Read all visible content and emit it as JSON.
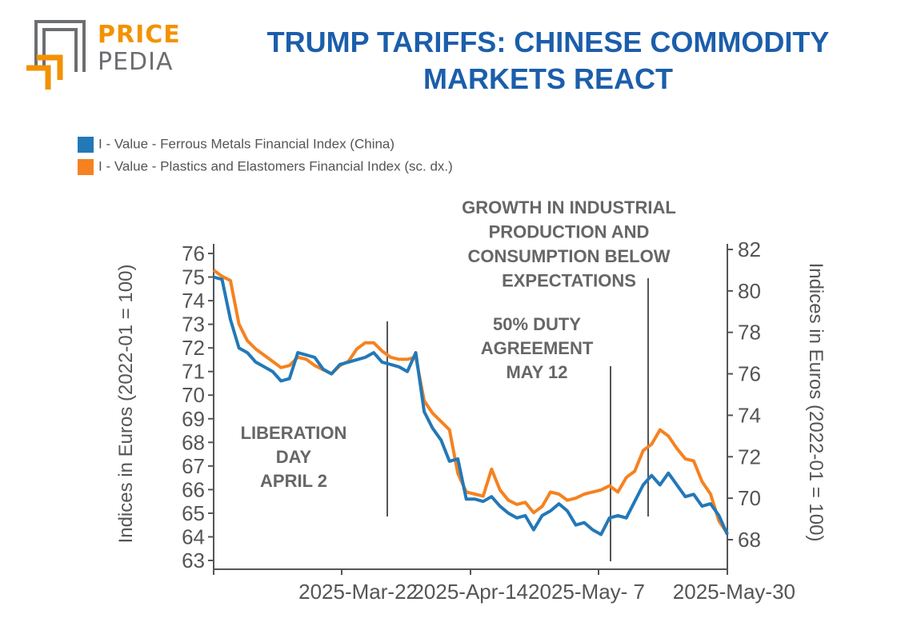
{
  "logo": {
    "line1": "PRICE",
    "line2": "PEDIA",
    "orange": "#f39200",
    "gray": "#6d6e71"
  },
  "title": {
    "line1": "TRUMP TARIFFS: CHINESE COMMODITY",
    "line2": "MARKETS REACT",
    "color": "#1b5eab"
  },
  "chart_data": {
    "type": "line",
    "x": [
      "2025-Mar-03",
      "2025-Mar-04",
      "2025-Mar-05",
      "2025-Mar-06",
      "2025-Mar-07",
      "2025-Mar-10",
      "2025-Mar-11",
      "2025-Mar-12",
      "2025-Mar-13",
      "2025-Mar-14",
      "2025-Mar-17",
      "2025-Mar-18",
      "2025-Mar-19",
      "2025-Mar-20",
      "2025-Mar-21",
      "2025-Mar-22",
      "2025-Mar-24",
      "2025-Mar-25",
      "2025-Mar-26",
      "2025-Mar-27",
      "2025-Mar-28",
      "2025-Mar-31",
      "2025-Apr-01",
      "2025-Apr-02",
      "2025-Apr-03",
      "2025-Apr-07",
      "2025-Apr-08",
      "2025-Apr-09",
      "2025-Apr-10",
      "2025-Apr-11",
      "2025-Apr-14",
      "2025-Apr-15",
      "2025-Apr-16",
      "2025-Apr-17",
      "2025-Apr-18",
      "2025-Apr-21",
      "2025-Apr-22",
      "2025-Apr-23",
      "2025-Apr-24",
      "2025-Apr-25",
      "2025-Apr-28",
      "2025-Apr-29",
      "2025-Apr-30",
      "2025-May-06",
      "2025-May-07",
      "2025-May-08",
      "2025-May-09",
      "2025-May-12",
      "2025-May-13",
      "2025-May-14",
      "2025-May-15",
      "2025-May-16",
      "2025-May-19",
      "2025-May-20",
      "2025-May-21",
      "2025-May-22",
      "2025-May-23",
      "2025-May-26",
      "2025-May-27",
      "2025-May-28",
      "2025-May-29",
      "2025-May-30"
    ],
    "series": [
      {
        "name": "I - Value - Ferrous Metals Financial Index (China)",
        "axis": "left",
        "color": "#2378b8",
        "values": [
          75.0,
          74.9,
          73.2,
          72.0,
          71.8,
          71.4,
          71.2,
          71.0,
          70.6,
          70.7,
          71.8,
          71.7,
          71.6,
          71.1,
          70.9,
          71.3,
          71.4,
          71.5,
          71.6,
          71.8,
          71.4,
          71.3,
          71.2,
          71.0,
          71.8,
          69.3,
          68.6,
          68.1,
          67.2,
          67.3,
          65.6,
          65.6,
          65.5,
          65.7,
          65.3,
          65.0,
          64.8,
          64.9,
          64.3,
          64.9,
          65.1,
          65.4,
          65.1,
          64.5,
          64.6,
          64.3,
          64.1,
          64.8,
          64.9,
          64.8,
          65.5,
          66.2,
          66.6,
          66.2,
          66.7,
          66.2,
          65.7,
          65.8,
          65.3,
          65.4,
          64.9,
          64.1
        ]
      },
      {
        "name": "I - Value - Plastics and Elastomers Financial Index (sc. dx.)",
        "axis": "right",
        "color": "#f58220",
        "values": [
          81.0,
          80.7,
          80.5,
          78.4,
          77.6,
          77.2,
          76.9,
          76.6,
          76.3,
          76.4,
          76.8,
          76.7,
          76.4,
          76.2,
          76.0,
          76.4,
          76.6,
          77.2,
          77.5,
          77.5,
          77.1,
          76.8,
          76.7,
          76.7,
          76.8,
          74.7,
          74.1,
          73.7,
          73.3,
          71.2,
          70.3,
          70.2,
          70.1,
          71.4,
          70.4,
          69.9,
          69.7,
          69.8,
          69.3,
          69.6,
          70.3,
          70.2,
          69.9,
          70.0,
          70.2,
          70.3,
          70.4,
          70.6,
          70.3,
          71.0,
          71.3,
          72.3,
          72.6,
          73.3,
          73.0,
          72.4,
          71.9,
          71.8,
          70.8,
          70.2,
          68.9,
          68.3
        ]
      }
    ],
    "y_left": {
      "title": "Indices in Euros (2022-01 = 100)",
      "min": 63,
      "max": 76,
      "ticks": [
        "76",
        "75",
        "74",
        "73",
        "72",
        "71",
        "70",
        "69",
        "68",
        "67",
        "66",
        "65",
        "64",
        "63"
      ]
    },
    "y_right": {
      "title": "Indices in Euros (2022-01 = 100)",
      "min": 68,
      "max": 82,
      "ticks": [
        "82",
        "80",
        "78",
        "76",
        "74",
        "72",
        "70",
        "68"
      ]
    },
    "x_tick_labels": [
      "2025-Mar-22",
      "2025-Apr-14",
      "2025-May- 7",
      "2025-May-30"
    ],
    "annotations": [
      {
        "lines": [
          "LIBERATION",
          "DAY",
          "APRIL 2"
        ],
        "date": "2025-Apr-02"
      },
      {
        "lines": [
          "50% DUTY",
          "AGREEMENT",
          "MAY 12"
        ],
        "date": "2025-May-12"
      },
      {
        "lines": [
          "GROWTH IN INDUSTRIAL",
          "PRODUCTION AND",
          "CONSUMPTION BELOW",
          "EXPECTATIONS"
        ],
        "date": "2025-May-19"
      }
    ]
  }
}
